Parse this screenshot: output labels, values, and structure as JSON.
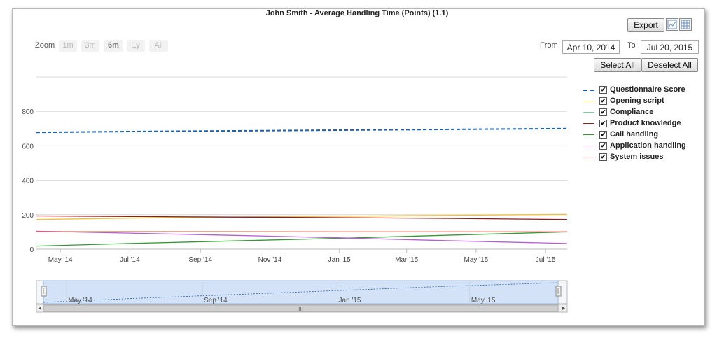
{
  "chart_data": {
    "type": "line",
    "title": "John Smith - Average Handling Time (Points) (1.1)",
    "xlabel": "",
    "ylabel": "",
    "ylim": [
      0,
      1000
    ],
    "yticks": [
      0,
      200,
      400,
      600,
      800
    ],
    "x_ticks": [
      "May '14",
      "Jul '14",
      "Sep '14",
      "Nov '14",
      "Jan '15",
      "Mar '15",
      "May '15",
      "Jul '15"
    ],
    "x_range": [
      "2014-04-10",
      "2015-07-20"
    ],
    "grid": true,
    "legend_position": "right",
    "x": [
      "2014-04-10",
      "2014-07-01",
      "2014-10-01",
      "2015-01-01",
      "2015-04-01",
      "2015-07-20"
    ],
    "series": [
      {
        "name": "Questionnaire Score",
        "color": "#1e5fa8",
        "dash": true,
        "values": [
          678,
          683,
          687,
          691,
          695,
          700
        ]
      },
      {
        "name": "Opening script",
        "color": "#f0c040",
        "dash": false,
        "values": [
          172,
          180,
          186,
          191,
          196,
          202
        ]
      },
      {
        "name": "Compliance",
        "color": "#66d999",
        "dash": false,
        "values": [
          102,
          102,
          102,
          101,
          101,
          101
        ]
      },
      {
        "name": "Product knowledge",
        "color": "#8b2020",
        "dash": false,
        "values": [
          193,
          190,
          186,
          183,
          179,
          172
        ]
      },
      {
        "name": "Call handling",
        "color": "#339933",
        "dash": false,
        "values": [
          18,
          33,
          48,
          63,
          80,
          100
        ]
      },
      {
        "name": "Application handling",
        "color": "#b460d0",
        "dash": false,
        "values": [
          104,
          93,
          80,
          66,
          50,
          33
        ]
      },
      {
        "name": "System issues",
        "color": "#e06060",
        "dash": false,
        "values": [
          100,
          100,
          100,
          100,
          100,
          100
        ]
      }
    ],
    "navigator": {
      "ticks": [
        "May '14",
        "Sep '14",
        "Jan '15",
        "May '15"
      ]
    }
  },
  "toolbar": {
    "export_label": "Export",
    "select_all_label": "Select All",
    "deselect_all_label": "Deselect All"
  },
  "zoom": {
    "label": "Zoom",
    "options": [
      "1m",
      "3m",
      "6m",
      "1y",
      "All"
    ]
  },
  "range": {
    "from_label": "From",
    "from_value": "Apr 10, 2014",
    "to_label": "To",
    "to_value": "Jul 20, 2015"
  },
  "navigator_scroll_grip": "III"
}
